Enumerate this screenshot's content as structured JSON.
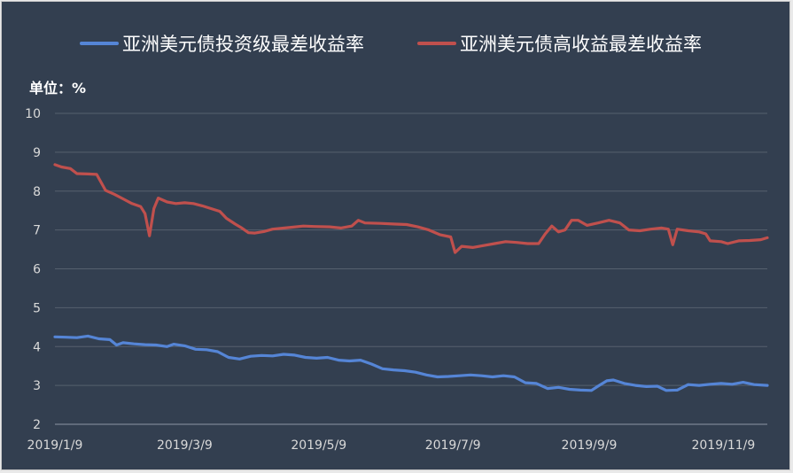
{
  "chart_data": {
    "type": "line",
    "title": "",
    "unit_label": "单位：%",
    "xlabel": "",
    "ylabel": "",
    "ylim": [
      2,
      10
    ],
    "y_ticks": [
      2,
      3,
      4,
      5,
      6,
      7,
      8,
      9,
      10
    ],
    "x_range": [
      "2019-01-09",
      "2019-11-29"
    ],
    "x_tick_labels": [
      {
        "label": "2019/1/9",
        "date": "2019-01-09"
      },
      {
        "label": "2019/3/9",
        "date": "2019-03-09"
      },
      {
        "label": "2019/5/9",
        "date": "2019-05-09"
      },
      {
        "label": "2019/7/9",
        "date": "2019-07-09"
      },
      {
        "label": "2019/9/9",
        "date": "2019-09-09"
      },
      {
        "label": "2019/11/9",
        "date": "2019-11-09"
      }
    ],
    "grid": true,
    "legend_position": "top",
    "series": [
      {
        "name": "亚洲美元债投资级最差收益率",
        "color": "#5585d6",
        "points": [
          [
            "2019-01-09",
            4.25
          ],
          [
            "2019-01-14",
            4.24
          ],
          [
            "2019-01-19",
            4.23
          ],
          [
            "2019-01-24",
            4.27
          ],
          [
            "2019-01-29",
            4.2
          ],
          [
            "2019-02-03",
            4.18
          ],
          [
            "2019-02-06",
            4.04
          ],
          [
            "2019-02-09",
            4.1
          ],
          [
            "2019-02-14",
            4.07
          ],
          [
            "2019-02-19",
            4.05
          ],
          [
            "2019-02-24",
            4.04
          ],
          [
            "2019-03-01",
            4.0
          ],
          [
            "2019-03-04",
            4.06
          ],
          [
            "2019-03-09",
            4.02
          ],
          [
            "2019-03-14",
            3.93
          ],
          [
            "2019-03-19",
            3.92
          ],
          [
            "2019-03-24",
            3.87
          ],
          [
            "2019-03-29",
            3.72
          ],
          [
            "2019-04-03",
            3.68
          ],
          [
            "2019-04-08",
            3.75
          ],
          [
            "2019-04-13",
            3.77
          ],
          [
            "2019-04-18",
            3.76
          ],
          [
            "2019-04-23",
            3.8
          ],
          [
            "2019-04-28",
            3.78
          ],
          [
            "2019-05-03",
            3.72
          ],
          [
            "2019-05-08",
            3.7
          ],
          [
            "2019-05-13",
            3.72
          ],
          [
            "2019-05-18",
            3.65
          ],
          [
            "2019-05-23",
            3.63
          ],
          [
            "2019-05-28",
            3.65
          ],
          [
            "2019-06-02",
            3.55
          ],
          [
            "2019-06-07",
            3.43
          ],
          [
            "2019-06-12",
            3.4
          ],
          [
            "2019-06-17",
            3.38
          ],
          [
            "2019-06-22",
            3.34
          ],
          [
            "2019-06-27",
            3.27
          ],
          [
            "2019-07-02",
            3.22
          ],
          [
            "2019-07-07",
            3.23
          ],
          [
            "2019-07-12",
            3.25
          ],
          [
            "2019-07-17",
            3.27
          ],
          [
            "2019-07-22",
            3.25
          ],
          [
            "2019-07-27",
            3.22
          ],
          [
            "2019-08-01",
            3.25
          ],
          [
            "2019-08-06",
            3.22
          ],
          [
            "2019-08-11",
            3.07
          ],
          [
            "2019-08-16",
            3.05
          ],
          [
            "2019-08-21",
            2.92
          ],
          [
            "2019-08-26",
            2.95
          ],
          [
            "2019-08-31",
            2.9
          ],
          [
            "2019-09-05",
            2.88
          ],
          [
            "2019-09-10",
            2.87
          ],
          [
            "2019-09-13",
            2.98
          ],
          [
            "2019-09-17",
            3.12
          ],
          [
            "2019-09-20",
            3.14
          ],
          [
            "2019-09-25",
            3.05
          ],
          [
            "2019-09-30",
            3.0
          ],
          [
            "2019-10-05",
            2.97
          ],
          [
            "2019-10-10",
            2.98
          ],
          [
            "2019-10-14",
            2.87
          ],
          [
            "2019-10-19",
            2.88
          ],
          [
            "2019-10-24",
            3.02
          ],
          [
            "2019-10-29",
            3.0
          ],
          [
            "2019-11-03",
            3.03
          ],
          [
            "2019-11-08",
            3.05
          ],
          [
            "2019-11-13",
            3.03
          ],
          [
            "2019-11-18",
            3.08
          ],
          [
            "2019-11-23",
            3.02
          ],
          [
            "2019-11-29",
            3.0
          ]
        ]
      },
      {
        "name": "亚洲美元债高收益最差收益率",
        "color": "#c0504d",
        "points": [
          [
            "2019-01-09",
            8.68
          ],
          [
            "2019-01-12",
            8.62
          ],
          [
            "2019-01-16",
            8.58
          ],
          [
            "2019-01-19",
            8.45
          ],
          [
            "2019-01-24",
            8.44
          ],
          [
            "2019-01-28",
            8.43
          ],
          [
            "2019-02-01",
            8.02
          ],
          [
            "2019-02-05",
            7.92
          ],
          [
            "2019-02-09",
            7.8
          ],
          [
            "2019-02-13",
            7.68
          ],
          [
            "2019-02-17",
            7.6
          ],
          [
            "2019-02-19",
            7.42
          ],
          [
            "2019-02-21",
            6.85
          ],
          [
            "2019-02-23",
            7.55
          ],
          [
            "2019-02-25",
            7.82
          ],
          [
            "2019-03-01",
            7.72
          ],
          [
            "2019-03-05",
            7.68
          ],
          [
            "2019-03-09",
            7.7
          ],
          [
            "2019-03-13",
            7.68
          ],
          [
            "2019-03-17",
            7.62
          ],
          [
            "2019-03-21",
            7.55
          ],
          [
            "2019-03-25",
            7.48
          ],
          [
            "2019-03-28",
            7.3
          ],
          [
            "2019-04-01",
            7.15
          ],
          [
            "2019-04-04",
            7.05
          ],
          [
            "2019-04-07",
            6.93
          ],
          [
            "2019-04-10",
            6.92
          ],
          [
            "2019-04-14",
            6.96
          ],
          [
            "2019-04-18",
            7.02
          ],
          [
            "2019-04-25",
            7.06
          ],
          [
            "2019-05-02",
            7.1
          ],
          [
            "2019-05-07",
            7.09
          ],
          [
            "2019-05-14",
            7.08
          ],
          [
            "2019-05-19",
            7.05
          ],
          [
            "2019-05-24",
            7.1
          ],
          [
            "2019-05-27",
            7.25
          ],
          [
            "2019-05-30",
            7.18
          ],
          [
            "2019-06-06",
            7.17
          ],
          [
            "2019-06-13",
            7.15
          ],
          [
            "2019-06-18",
            7.14
          ],
          [
            "2019-06-23",
            7.08
          ],
          [
            "2019-06-28",
            7.0
          ],
          [
            "2019-07-03",
            6.88
          ],
          [
            "2019-07-08",
            6.82
          ],
          [
            "2019-07-10",
            6.42
          ],
          [
            "2019-07-13",
            6.58
          ],
          [
            "2019-07-18",
            6.55
          ],
          [
            "2019-07-23",
            6.6
          ],
          [
            "2019-07-28",
            6.65
          ],
          [
            "2019-08-02",
            6.7
          ],
          [
            "2019-08-07",
            6.68
          ],
          [
            "2019-08-12",
            6.65
          ],
          [
            "2019-08-17",
            6.65
          ],
          [
            "2019-08-20",
            6.9
          ],
          [
            "2019-08-23",
            7.1
          ],
          [
            "2019-08-26",
            6.95
          ],
          [
            "2019-08-29",
            7.0
          ],
          [
            "2019-09-01",
            7.25
          ],
          [
            "2019-09-04",
            7.25
          ],
          [
            "2019-09-08",
            7.12
          ],
          [
            "2019-09-13",
            7.18
          ],
          [
            "2019-09-18",
            7.25
          ],
          [
            "2019-09-23",
            7.18
          ],
          [
            "2019-09-27",
            7.0
          ],
          [
            "2019-10-02",
            6.98
          ],
          [
            "2019-10-07",
            7.02
          ],
          [
            "2019-10-12",
            7.05
          ],
          [
            "2019-10-15",
            7.02
          ],
          [
            "2019-10-17",
            6.62
          ],
          [
            "2019-10-19",
            7.02
          ],
          [
            "2019-10-24",
            6.98
          ],
          [
            "2019-10-29",
            6.95
          ],
          [
            "2019-11-01",
            6.9
          ],
          [
            "2019-11-03",
            6.72
          ],
          [
            "2019-11-08",
            6.7
          ],
          [
            "2019-11-11",
            6.65
          ],
          [
            "2019-11-16",
            6.72
          ],
          [
            "2019-11-21",
            6.73
          ],
          [
            "2019-11-26",
            6.75
          ],
          [
            "2019-11-29",
            6.8
          ]
        ]
      }
    ]
  }
}
